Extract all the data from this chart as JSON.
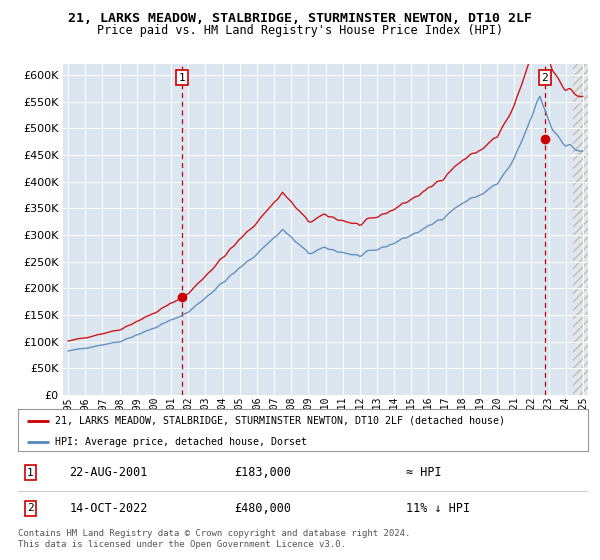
{
  "title": "21, LARKS MEADOW, STALBRIDGE, STURMINSTER NEWTON, DT10 2LF",
  "subtitle": "Price paid vs. HM Land Registry's House Price Index (HPI)",
  "ylim": [
    0,
    620000
  ],
  "ytick_values": [
    0,
    50000,
    100000,
    150000,
    200000,
    250000,
    300000,
    350000,
    400000,
    450000,
    500000,
    550000,
    600000
  ],
  "hpi_line_color": "#5588bb",
  "price_line_color": "#cc0000",
  "plot_bg_color": "#dce6f1",
  "hatch_region_color": "#c0c0c0",
  "sale1_x_year": 2001.646,
  "sale1_y": 183000,
  "sale2_x_year": 2022.79,
  "sale2_y": 480000,
  "sale1_date": "22-AUG-2001",
  "sale1_price": "£183,000",
  "sale1_vs_hpi": "≈ HPI",
  "sale2_date": "14-OCT-2022",
  "sale2_price": "£480,000",
  "sale2_vs_hpi": "11% ↓ HPI",
  "legend_line1": "21, LARKS MEADOW, STALBRIDGE, STURMINSTER NEWTON, DT10 2LF (detached house)",
  "legend_line2": "HPI: Average price, detached house, Dorset",
  "footnote": "Contains HM Land Registry data © Crown copyright and database right 2024.\nThis data is licensed under the Open Government Licence v3.0.",
  "xlim_left": 1994.7,
  "xlim_right": 2025.3
}
